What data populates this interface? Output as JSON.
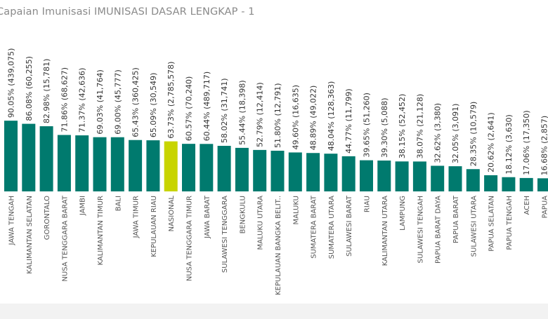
{
  "chart_data": {
    "type": "bar",
    "title": "Capaian Imunisasi IMUNISASI DASAR LENGKAP - 1",
    "ylim": [
      0,
      100
    ],
    "grid": false,
    "colors": {
      "bar": "#007a6e",
      "highlight": "#c8d400",
      "text": "#555555",
      "title": "#8a8a8a"
    },
    "highlight_category": "NASIONAL",
    "categories": [
      "JAWA TENGAH",
      "KALIMANTAN SELATAN",
      "GORONTALO",
      "NUSA TENGGARA BARAT",
      "JAMBI",
      "KALIMANTAN TIMUR",
      "BALI",
      "JAWA TIMUR",
      "KEPULAUAN RIAU",
      "NASIONAL",
      "NUSA TENGGARA TIMUR",
      "JAWA BARAT",
      "SULAWESI TENGGARA",
      "BENGKULU",
      "MALUKU UTARA",
      "KEPULAUAN BANGKA BELIT..",
      "MALUKU",
      "SUMATERA BARAT",
      "SUMATERA UTARA",
      "SULAWESI BARAT",
      "RIAU",
      "KALIMANTAN UTARA",
      "LAMPUNG",
      "SULAWESI TENGAH",
      "PAPUA BARAT DAYA",
      "PAPUA BARAT",
      "SULAWESI UTARA",
      "PAPUA SELATAN",
      "PAPUA TENGAH",
      "ACEH",
      "PAPUA"
    ],
    "values": [
      90.05,
      86.08,
      82.98,
      71.86,
      71.37,
      69.03,
      69.0,
      65.43,
      65.09,
      63.73,
      60.57,
      60.44,
      58.02,
      55.44,
      52.79,
      51.8,
      49.6,
      48.89,
      48.04,
      44.77,
      39.65,
      39.3,
      38.15,
      38.07,
      32.62,
      32.05,
      28.35,
      20.62,
      18.12,
      17.06,
      16.68
    ],
    "data_labels": [
      "90.05% (439,075)",
      "86.08% (60,255)",
      "82.98% (15,781)",
      "71.86% (68,627)",
      "71.37% (42,636)",
      "69.03% (41,764)",
      "69.00% (45,777)",
      "65.43% (360,425)",
      "65.09% (30,549)",
      "63.73% (2,785,578)",
      "60.57% (70,240)",
      "60.44% (489,717)",
      "58.02% (31,741)",
      "55.44% (18,398)",
      "52.79% (12,414)",
      "51.80% (12,791)",
      "49.60% (16,635)",
      "48.89% (49,022)",
      "48.04% (128,363)",
      "44.77% (11,799)",
      "39.65% (51,260)",
      "39.30% (5,088)",
      "38.15% (52,452)",
      "38.07% (21,128)",
      "32.62% (3,380)",
      "32.05% (3,091)",
      "28.35% (10,579)",
      "20.62% (2,641)",
      "18.12% (3,630)",
      "17.06% (17,350)",
      "16.68% (2,857)"
    ]
  }
}
